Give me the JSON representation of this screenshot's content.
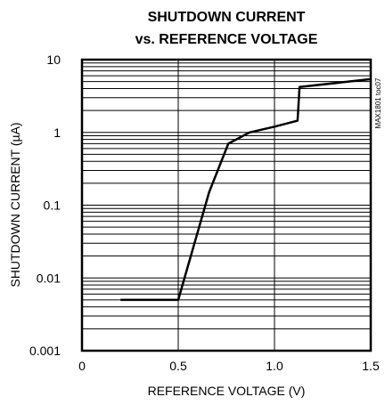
{
  "chart_data": {
    "type": "line",
    "title_line1": "SHUTDOWN CURRENT",
    "title_line2": "vs. REFERENCE VOLTAGE",
    "xlabel": "REFERENCE VOLTAGE (V)",
    "ylabel": "SHUTDOWN CURRENT (µA)",
    "side_code": "MAX1801 toc07",
    "x_scale": "linear",
    "y_scale": "log",
    "xlim": [
      0,
      1.5
    ],
    "ylim": [
      0.001,
      10
    ],
    "grid": true,
    "x_ticks": [
      0,
      0.5,
      1.0,
      1.5
    ],
    "x_tick_labels": [
      "0",
      "0.5",
      "1.0",
      "1.5"
    ],
    "y_ticks": [
      0.001,
      0.01,
      0.1,
      1,
      10
    ],
    "y_tick_labels": [
      "0.001",
      "0.01",
      "0.1",
      "1",
      "10"
    ],
    "series": [
      {
        "x": [
          0.2,
          0.5,
          0.66,
          0.76,
          0.87,
          1.0,
          1.12,
          1.13,
          1.5
        ],
        "y": [
          0.005,
          0.005,
          0.15,
          0.7,
          1.0,
          1.2,
          1.45,
          4.2,
          5.4
        ]
      }
    ]
  }
}
